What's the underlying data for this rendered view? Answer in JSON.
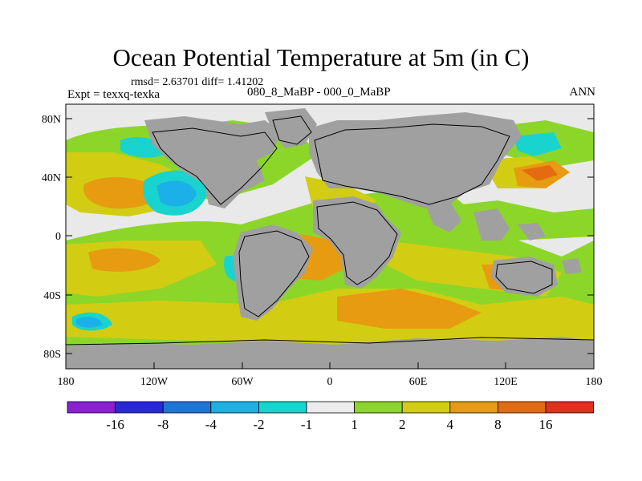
{
  "title": "Ocean Potential Temperature at 5m (in C)",
  "stats": "rmsd= 2.63701 diff= 1.41202",
  "experiment": "Expt = texxq-texka",
  "comparison": "080_8_MaBP - 000_0_MaBP",
  "season": "ANN",
  "map": {
    "lat_ticks": [
      "80N",
      "40N",
      "0",
      "40S",
      "80S"
    ],
    "lon_ticks": [
      "180",
      "120W",
      "60W",
      "0",
      "60E",
      "120E",
      "180"
    ]
  },
  "colorbar": {
    "labels": [
      "-16",
      "-8",
      "-4",
      "-2",
      "-1",
      "1",
      "2",
      "4",
      "8",
      "16"
    ],
    "colors": [
      "#8a1fd6",
      "#2828d8",
      "#1e74d9",
      "#1cb0e8",
      "#19d3cf",
      "#ececec",
      "#8cd62a",
      "#d2cd12",
      "#e69b10",
      "#e56b12",
      "#e0301e"
    ]
  }
}
